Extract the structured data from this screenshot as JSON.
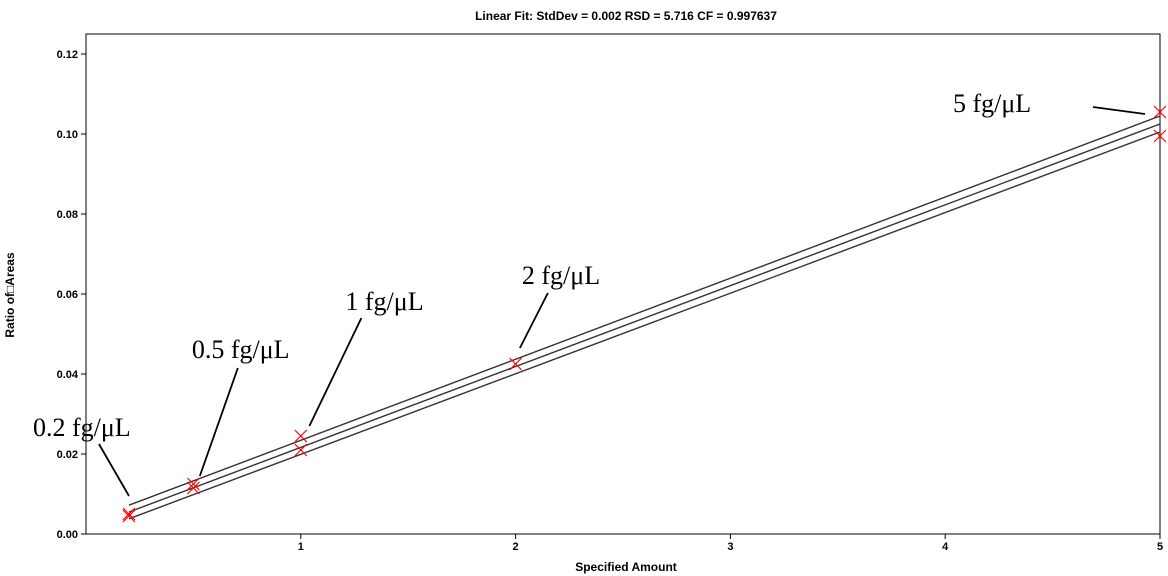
{
  "chart_data": {
    "type": "scatter",
    "title": "Linear Fit: StdDev = 0.002 RSD = 5.716 CF = 0.997637",
    "xlabel": "Specified Amount",
    "ylabel": "Ratio of□Areas",
    "xlim": [
      0.0,
      5.0
    ],
    "ylim": [
      0.0,
      0.125
    ],
    "x_ticks": [
      1,
      2,
      3,
      4,
      5
    ],
    "y_ticks": [
      0.0,
      0.02,
      0.04,
      0.06,
      0.08,
      0.1,
      0.12
    ],
    "x_tick_labels": [
      "1",
      "2",
      "3",
      "4",
      "5"
    ],
    "y_tick_labels": [
      "0.00",
      "0.02",
      "0.04",
      "0.06",
      "0.08",
      "0.10",
      "0.12"
    ],
    "grid": false,
    "marker_color": "#ff0000",
    "line_color": "#333333",
    "points": [
      {
        "x": 0.2,
        "y": 0.0045
      },
      {
        "x": 0.2,
        "y": 0.005
      },
      {
        "x": 0.5,
        "y": 0.0115
      },
      {
        "x": 0.5,
        "y": 0.0125
      },
      {
        "x": 1.0,
        "y": 0.021
      },
      {
        "x": 1.0,
        "y": 0.0245
      },
      {
        "x": 2.0,
        "y": 0.0425
      },
      {
        "x": 5.0,
        "y": 0.0995
      },
      {
        "x": 5.0,
        "y": 0.1055
      }
    ],
    "fit_lines": [
      {
        "x": [
          0.2,
          5.0
        ],
        "y": [
          0.0072,
          0.1045
        ]
      },
      {
        "x": [
          0.2,
          5.0
        ],
        "y": [
          0.0055,
          0.1025
        ]
      },
      {
        "x": [
          0.2,
          5.0
        ],
        "y": [
          0.0038,
          0.1005
        ]
      }
    ],
    "annotations": [
      {
        "text": "0.2 fg/μL",
        "target_x": 0.2,
        "target_y": 0.0095
      },
      {
        "text": "0.5 fg/μL",
        "target_x": 0.53,
        "target_y": 0.0145
      },
      {
        "text": "1 fg/μL",
        "target_x": 1.04,
        "target_y": 0.027
      },
      {
        "text": "2 fg/μL",
        "target_x": 2.02,
        "target_y": 0.0465
      },
      {
        "text": "5 fg/μL",
        "target_x": 4.93,
        "target_y": 0.105
      }
    ]
  }
}
